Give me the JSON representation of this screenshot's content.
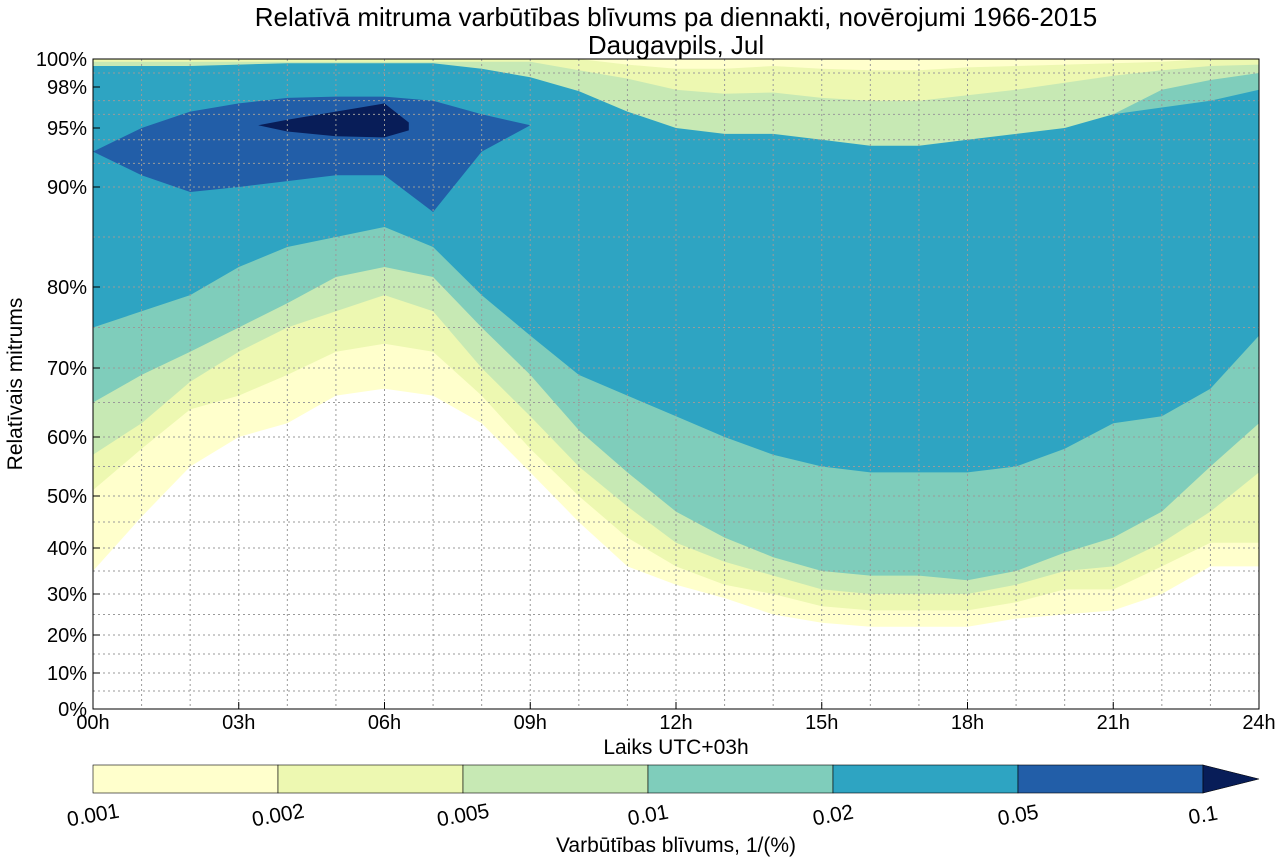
{
  "chart_data": {
    "type": "contour",
    "title": "Relatīvā mitruma varbūtības blīvums pa diennakti, novērojumi 1966-2015",
    "subtitle": "Daugavpils, Jul",
    "xlabel": "Laiks UTC+03h",
    "ylabel": "Relatīvais mitrums",
    "xlim": [
      0,
      24
    ],
    "ylim": [
      0,
      100
    ],
    "y_scale": "nonlinear (stretched towards 100%)",
    "grid": true,
    "x_ticks": [
      {
        "value": 0,
        "label": "00h"
      },
      {
        "value": 3,
        "label": "03h"
      },
      {
        "value": 6,
        "label": "06h"
      },
      {
        "value": 9,
        "label": "09h"
      },
      {
        "value": 12,
        "label": "12h"
      },
      {
        "value": 15,
        "label": "15h"
      },
      {
        "value": 18,
        "label": "18h"
      },
      {
        "value": 21,
        "label": "21h"
      },
      {
        "value": 24,
        "label": "24h"
      }
    ],
    "y_ticks": [
      {
        "value": 0,
        "label": "0%"
      },
      {
        "value": 10,
        "label": "10%"
      },
      {
        "value": 20,
        "label": "20%"
      },
      {
        "value": 30,
        "label": "30%"
      },
      {
        "value": 40,
        "label": "40%"
      },
      {
        "value": 50,
        "label": "50%"
      },
      {
        "value": 60,
        "label": "60%"
      },
      {
        "value": 70,
        "label": "70%"
      },
      {
        "value": 80,
        "label": "80%"
      },
      {
        "value": 90,
        "label": "90%"
      },
      {
        "value": 95,
        "label": "95%"
      },
      {
        "value": 98,
        "label": "98%"
      },
      {
        "value": 100,
        "label": "100%"
      }
    ],
    "y_axis_map": [
      [
        0,
        0
      ],
      [
        10,
        10
      ],
      [
        20,
        20
      ],
      [
        30,
        30
      ],
      [
        40,
        40
      ],
      [
        50,
        50
      ],
      [
        60,
        60
      ],
      [
        70,
        70
      ],
      [
        80,
        80
      ],
      [
        90,
        90
      ],
      [
        95,
        95
      ],
      [
        98,
        98
      ],
      [
        100,
        100
      ]
    ],
    "colorbar": {
      "label": "Varbūtības blīvums, 1/(%)",
      "boundaries": [
        "0.001",
        "0.002",
        "0.005",
        "0.01",
        "0.02",
        "0.05",
        "0.1"
      ],
      "colors": [
        "#ffffcc",
        "#edf8b1",
        "#c7e9b4",
        "#7fcdbb",
        "#2ea4c2",
        "#225ea8",
        "#081d58"
      ],
      "extend": "max"
    },
    "contour_levels": [
      {
        "level": "0.001",
        "color": "#ffffcc",
        "lower": [
          [
            0,
            35
          ],
          [
            1,
            46
          ],
          [
            2,
            55
          ],
          [
            3,
            60
          ],
          [
            4,
            62
          ],
          [
            5,
            66
          ],
          [
            6,
            67
          ],
          [
            7,
            66
          ],
          [
            8,
            62
          ],
          [
            9,
            54
          ],
          [
            10,
            45
          ],
          [
            11,
            36
          ],
          [
            12,
            32
          ],
          [
            13,
            29
          ],
          [
            14,
            25
          ],
          [
            15,
            23
          ],
          [
            16,
            22
          ],
          [
            17,
            22
          ],
          [
            18,
            22
          ],
          [
            19,
            24
          ],
          [
            20,
            25
          ],
          [
            21,
            26
          ],
          [
            22,
            30
          ],
          [
            23,
            36
          ],
          [
            24,
            36
          ]
        ],
        "upper": [
          [
            0,
            100
          ],
          [
            24,
            100
          ]
        ]
      },
      {
        "level": "0.002",
        "color": "#edf8b1",
        "lower": [
          [
            0,
            51
          ],
          [
            1,
            58
          ],
          [
            2,
            64
          ],
          [
            3,
            66
          ],
          [
            4,
            69
          ],
          [
            5,
            72
          ],
          [
            6,
            73
          ],
          [
            7,
            72
          ],
          [
            8,
            66
          ],
          [
            9,
            58
          ],
          [
            10,
            50
          ],
          [
            11,
            42
          ],
          [
            12,
            36
          ],
          [
            13,
            32
          ],
          [
            14,
            30
          ],
          [
            15,
            27
          ],
          [
            16,
            26
          ],
          [
            17,
            26
          ],
          [
            18,
            26
          ],
          [
            19,
            28
          ],
          [
            20,
            31
          ],
          [
            21,
            31
          ],
          [
            22,
            36
          ],
          [
            23,
            41
          ],
          [
            24,
            41
          ]
        ],
        "upper": [
          [
            0,
            100
          ],
          [
            1,
            100
          ],
          [
            2,
            100
          ],
          [
            3,
            100
          ],
          [
            4,
            100
          ],
          [
            5,
            100
          ],
          [
            6,
            100
          ],
          [
            7,
            100
          ],
          [
            8,
            100
          ],
          [
            9,
            100
          ],
          [
            10,
            100
          ],
          [
            11,
            99.6
          ],
          [
            12,
            99.3
          ],
          [
            13,
            99.3
          ],
          [
            14,
            99.5
          ],
          [
            15,
            99.3
          ],
          [
            16,
            99.2
          ],
          [
            17,
            99.2
          ],
          [
            18,
            99.4
          ],
          [
            19,
            99.5
          ],
          [
            20,
            99.6
          ],
          [
            21,
            99.7
          ],
          [
            22,
            99.8
          ],
          [
            23,
            100
          ],
          [
            24,
            100
          ]
        ]
      },
      {
        "level": "0.005",
        "color": "#c7e9b4",
        "lower": [
          [
            0,
            57
          ],
          [
            1,
            62
          ],
          [
            2,
            68
          ],
          [
            3,
            72
          ],
          [
            4,
            75
          ],
          [
            5,
            77
          ],
          [
            6,
            79
          ],
          [
            7,
            77
          ],
          [
            8,
            70
          ],
          [
            9,
            63
          ],
          [
            10,
            55
          ],
          [
            11,
            48
          ],
          [
            12,
            41
          ],
          [
            13,
            37
          ],
          [
            14,
            34
          ],
          [
            15,
            31
          ],
          [
            16,
            30
          ],
          [
            17,
            30
          ],
          [
            18,
            30
          ],
          [
            19,
            32
          ],
          [
            20,
            35
          ],
          [
            21,
            36
          ],
          [
            22,
            41
          ],
          [
            23,
            47
          ],
          [
            24,
            54
          ]
        ],
        "upper": [
          [
            0,
            99.8
          ],
          [
            1,
            99.8
          ],
          [
            2,
            99.8
          ],
          [
            3,
            99.8
          ],
          [
            4,
            99.8
          ],
          [
            5,
            99.8
          ],
          [
            6,
            99.8
          ],
          [
            7,
            99.8
          ],
          [
            8,
            99.8
          ],
          [
            9,
            99.8
          ],
          [
            10,
            99.2
          ],
          [
            11,
            98.6
          ],
          [
            12,
            97.8
          ],
          [
            13,
            97.5
          ],
          [
            14,
            97.6
          ],
          [
            15,
            97.2
          ],
          [
            16,
            97
          ],
          [
            17,
            97
          ],
          [
            18,
            97.4
          ],
          [
            19,
            97.8
          ],
          [
            20,
            98.3
          ],
          [
            21,
            98.8
          ],
          [
            22,
            99.2
          ],
          [
            23,
            99.5
          ],
          [
            24,
            99.6
          ]
        ]
      },
      {
        "level": "0.01",
        "color": "#7fcdbb",
        "lower": [
          [
            0,
            65
          ],
          [
            1,
            69
          ],
          [
            2,
            72
          ],
          [
            3,
            75
          ],
          [
            4,
            78
          ],
          [
            5,
            81
          ],
          [
            6,
            82
          ],
          [
            7,
            81
          ],
          [
            8,
            75
          ],
          [
            9,
            69
          ],
          [
            10,
            61
          ],
          [
            11,
            54
          ],
          [
            12,
            47
          ],
          [
            13,
            42
          ],
          [
            14,
            38
          ],
          [
            15,
            35
          ],
          [
            16,
            34
          ],
          [
            17,
            34
          ],
          [
            18,
            33
          ],
          [
            19,
            35
          ],
          [
            20,
            39
          ],
          [
            21,
            42
          ],
          [
            22,
            47
          ],
          [
            23,
            55
          ],
          [
            24,
            62
          ]
        ],
        "upper": [
          [
            0,
            99.5
          ],
          [
            1,
            99.5
          ],
          [
            2,
            99.5
          ],
          [
            3,
            99.5
          ],
          [
            4,
            99.5
          ],
          [
            5,
            99.6
          ],
          [
            6,
            99.6
          ],
          [
            7,
            99.5
          ],
          [
            8,
            99.3
          ],
          [
            9,
            98.5
          ],
          [
            10,
            96.8
          ],
          [
            11,
            92
          ],
          [
            12,
            89
          ],
          [
            13,
            88
          ],
          [
            14,
            88
          ],
          [
            15,
            87.5
          ],
          [
            16,
            87
          ],
          [
            17,
            87
          ],
          [
            18,
            88
          ],
          [
            19,
            89
          ],
          [
            20,
            92
          ],
          [
            21,
            96
          ],
          [
            22,
            97.8
          ],
          [
            23,
            98.5
          ],
          [
            24,
            99
          ]
        ]
      },
      {
        "level": "0.02",
        "color": "#2ea4c2",
        "lower": [
          [
            0,
            75
          ],
          [
            1,
            77
          ],
          [
            2,
            79
          ],
          [
            3,
            82
          ],
          [
            4,
            84
          ],
          [
            5,
            85
          ],
          [
            6,
            86
          ],
          [
            7,
            84
          ],
          [
            8,
            79
          ],
          [
            9,
            74
          ],
          [
            10,
            69
          ],
          [
            11,
            66
          ],
          [
            12,
            63
          ],
          [
            13,
            60
          ],
          [
            14,
            57
          ],
          [
            15,
            55
          ],
          [
            16,
            54
          ],
          [
            17,
            54
          ],
          [
            18,
            54
          ],
          [
            19,
            55
          ],
          [
            20,
            58
          ],
          [
            21,
            62
          ],
          [
            22,
            63
          ],
          [
            23,
            67
          ],
          [
            24,
            74
          ]
        ],
        "upper": [
          [
            0,
            99.5
          ],
          [
            1,
            99.5
          ],
          [
            2,
            99.5
          ],
          [
            3,
            99.6
          ],
          [
            4,
            99.7
          ],
          [
            5,
            99.7
          ],
          [
            6,
            99.7
          ],
          [
            7,
            99.7
          ],
          [
            8,
            99.3
          ],
          [
            9,
            98.7
          ],
          [
            10,
            97.7
          ],
          [
            11,
            96.2
          ],
          [
            12,
            95
          ],
          [
            13,
            94.5
          ],
          [
            14,
            94.5
          ],
          [
            15,
            94
          ],
          [
            16,
            93.5
          ],
          [
            17,
            93.5
          ],
          [
            18,
            94
          ],
          [
            19,
            94.5
          ],
          [
            20,
            95
          ],
          [
            21,
            96
          ],
          [
            22,
            96.5
          ],
          [
            23,
            97
          ],
          [
            24,
            97.8
          ]
        ]
      },
      {
        "level": "0.05",
        "color": "#225ea8",
        "lower": [
          [
            0,
            93
          ],
          [
            1,
            91
          ],
          [
            2,
            89.5
          ],
          [
            3,
            90
          ],
          [
            4,
            90.5
          ],
          [
            5,
            91
          ],
          [
            6,
            91
          ],
          [
            7,
            87.5
          ],
          [
            8,
            93
          ],
          [
            9,
            95.2
          ]
        ],
        "upper": [
          [
            0,
            93
          ],
          [
            1,
            95
          ],
          [
            2,
            96.2
          ],
          [
            3,
            96.8
          ],
          [
            4,
            97.2
          ],
          [
            5,
            97.3
          ],
          [
            6,
            97.3
          ],
          [
            7,
            97
          ],
          [
            8,
            96
          ],
          [
            9,
            95.2
          ]
        ]
      },
      {
        "level": "0.1",
        "color": "#081d58",
        "lower": [
          [
            3.4,
            95.2
          ],
          [
            4,
            94.7
          ],
          [
            5,
            94.3
          ],
          [
            6,
            94.2
          ],
          [
            6.5,
            94.8
          ]
        ],
        "upper": [
          [
            3.4,
            95.2
          ],
          [
            4,
            95.6
          ],
          [
            5,
            96.2
          ],
          [
            6,
            96.8
          ],
          [
            6.5,
            95.4
          ]
        ]
      }
    ]
  }
}
